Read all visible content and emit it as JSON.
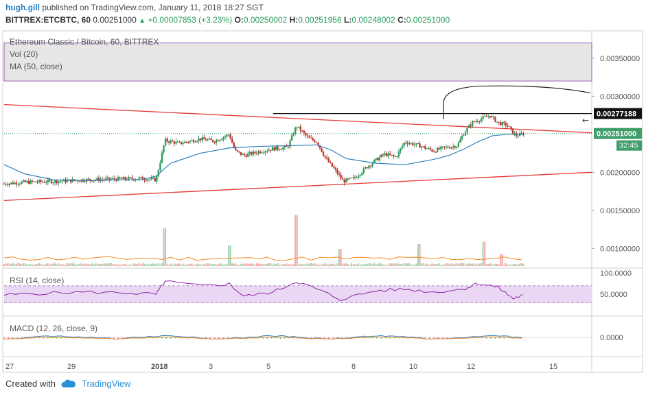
{
  "header": {
    "author": "hugh.gill",
    "published_text": "published on TradingView.com, January 11, 2018 18:27 SGT"
  },
  "ticker": {
    "symbol": "BITTREX:ETCBTC, 60",
    "price": "0.00251000",
    "change": "+0.00007853 (+3.23%)",
    "o_label": "O:",
    "o": "0.00250002",
    "h_label": "H:",
    "h": "0.00251956",
    "l_label": "L:",
    "l": "0.00248002",
    "c_label": "C:",
    "c": "0.00251000"
  },
  "legend": {
    "title": "Ethereum Classic / Bitcoin, 60, BITTREX",
    "vol": "Vol (20)",
    "ma": "MA (50, close)",
    "rsi": "RSI (14, close)",
    "macd": "MACD (12, 26, close, 9)"
  },
  "price_tags": {
    "resistance": "0.00277188",
    "last": "0.00251000",
    "countdown": "32:45"
  },
  "footer": {
    "created_with": "Created with",
    "brand": "TradingView"
  },
  "colors": {
    "up": "#2a9d5a",
    "down": "#c0392b",
    "ma": "#2f7fb8",
    "trend": "#e53935",
    "rsi": "#8e24aa",
    "rsi_band": "#ead7f3",
    "macd": "#2f7fb8",
    "signal": "#f08a24",
    "highlight": "#e6e6e6",
    "band_border": "#9b59b6"
  },
  "chart_data": {
    "type": "candlestick",
    "title": "Ethereum Classic / Bitcoin, 60, BITTREX",
    "xlabel": "",
    "ylabel": "",
    "x_ticks": [
      "27",
      "29",
      "2018",
      "3",
      "5",
      "8",
      "10",
      "12",
      "15"
    ],
    "y_ticks": [
      "0.00350000",
      "0.00300000",
      "0.00200000",
      "0.00150000",
      "0.00100000"
    ],
    "ylim": [
      0.00075,
      0.00385
    ],
    "rsi_ticks": [
      "100.0000",
      "50.0000"
    ],
    "rsi_ylim": [
      0,
      110
    ],
    "macd_ticks": [
      "0.0000"
    ],
    "close_path": [
      [
        26.8,
        0.00185
      ],
      [
        27.5,
        0.00187
      ],
      [
        28.5,
        0.00188
      ],
      [
        29.5,
        0.0019
      ],
      [
        30.5,
        0.00191
      ],
      [
        31.5,
        0.00192
      ],
      [
        32.0,
        0.0019
      ],
      [
        32.3,
        0.00242
      ],
      [
        32.8,
        0.00238
      ],
      [
        33.5,
        0.00244
      ],
      [
        34.0,
        0.00241
      ],
      [
        34.5,
        0.0025
      ],
      [
        34.7,
        0.00228
      ],
      [
        35.0,
        0.00222
      ],
      [
        35.5,
        0.00227
      ],
      [
        36.0,
        0.00231
      ],
      [
        36.5,
        0.00233
      ],
      [
        36.8,
        0.00261
      ],
      [
        37.2,
        0.00245
      ],
      [
        37.5,
        0.0024
      ],
      [
        37.8,
        0.00218
      ],
      [
        38.2,
        0.00199
      ],
      [
        38.4,
        0.00188
      ],
      [
        38.8,
        0.00193
      ],
      [
        39.3,
        0.0021
      ],
      [
        39.8,
        0.00224
      ],
      [
        40.2,
        0.0022
      ],
      [
        40.5,
        0.0024
      ],
      [
        41.0,
        0.00235
      ],
      [
        41.5,
        0.00228
      ],
      [
        41.8,
        0.00232
      ],
      [
        42.3,
        0.00235
      ],
      [
        42.5,
        0.0025
      ],
      [
        42.8,
        0.00265
      ],
      [
        43.1,
        0.0027
      ],
      [
        43.4,
        0.00275
      ],
      [
        43.7,
        0.00265
      ],
      [
        44.0,
        0.00262
      ],
      [
        44.3,
        0.00248
      ],
      [
        44.6,
        0.00251
      ]
    ],
    "ma_path": [
      [
        26.8,
        0.0021
      ],
      [
        27.5,
        0.00198
      ],
      [
        28.5,
        0.0019
      ],
      [
        29.5,
        0.00189
      ],
      [
        30.5,
        0.0019
      ],
      [
        31.5,
        0.0019
      ],
      [
        32.0,
        0.00195
      ],
      [
        32.5,
        0.00212
      ],
      [
        33.5,
        0.00225
      ],
      [
        34.5,
        0.00232
      ],
      [
        35.5,
        0.00234
      ],
      [
        36.5,
        0.00235
      ],
      [
        37.5,
        0.00236
      ],
      [
        38.0,
        0.00229
      ],
      [
        38.5,
        0.00218
      ],
      [
        39.5,
        0.00212
      ],
      [
        40.5,
        0.0021
      ],
      [
        41.5,
        0.00217
      ],
      [
        42.0,
        0.00222
      ],
      [
        42.5,
        0.0023
      ],
      [
        43.0,
        0.0024
      ],
      [
        43.5,
        0.00248
      ],
      [
        44.0,
        0.0025
      ],
      [
        44.6,
        0.0025
      ]
    ],
    "trendlines": [
      {
        "from": [
          26.8,
          0.00289
        ],
        "to": [
          46.9,
          0.00252
        ]
      },
      {
        "from": [
          26.8,
          0.00163
        ],
        "to": [
          46.9,
          0.002
        ]
      }
    ],
    "resistance_level": 0.00277188,
    "last_price": 0.00251,
    "highlight_band": [
      0.0032,
      0.0037
    ],
    "volume": [
      [
        32.3,
        0.00031
      ],
      [
        34.5,
        0.00017
      ],
      [
        36.8,
        0.00042
      ],
      [
        38.3,
        0.00014
      ],
      [
        41.0,
        0.00018
      ],
      [
        43.2,
        0.0002
      ],
      [
        43.8,
        0.0001
      ]
    ],
    "rsi_path": [
      [
        26.8,
        48
      ],
      [
        28.0,
        52
      ],
      [
        29.5,
        55
      ],
      [
        31.0,
        53
      ],
      [
        32.0,
        50
      ],
      [
        32.3,
        80
      ],
      [
        33.5,
        70
      ],
      [
        34.5,
        74
      ],
      [
        35.0,
        45
      ],
      [
        36.0,
        55
      ],
      [
        36.8,
        80
      ],
      [
        37.5,
        62
      ],
      [
        38.3,
        38
      ],
      [
        39.5,
        58
      ],
      [
        40.5,
        62
      ],
      [
        41.5,
        55
      ],
      [
        42.5,
        62
      ],
      [
        43.0,
        76
      ],
      [
        43.7,
        66
      ],
      [
        44.2,
        40
      ],
      [
        44.6,
        48
      ]
    ],
    "rsi_band": [
      30,
      70
    ]
  }
}
